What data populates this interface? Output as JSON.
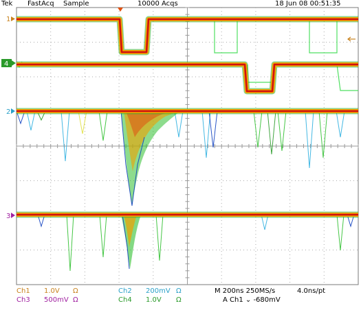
{
  "header": {
    "brand": "Tek",
    "mode": "FastAcq",
    "acq_mode": "Sample",
    "acquisitions": "10000 Acqs",
    "date_time": "18 Jun 08 00:51:35"
  },
  "channel_markers": {
    "ch1": "1",
    "ch4": "4",
    "ch2": "2",
    "ch3": "3"
  },
  "readout": {
    "ch1_label": "Ch1",
    "ch1_scale": "1.0V",
    "ch1_coupling": "Ω",
    "ch3_label": "Ch3",
    "ch3_scale": "500mV",
    "ch3_coupling": "Ω",
    "ch2_label": "Ch2",
    "ch2_scale": "200mV",
    "ch2_coupling": "Ω",
    "ch4_label": "Ch4",
    "ch4_scale": "1.0V",
    "ch4_coupling": "Ω",
    "timebase": "M 200ns 250MS/s",
    "resolution": "4.0ns/pt",
    "trigger": "A  Ch1  ⌄  -680mV"
  },
  "colors": {
    "ch1": "#c8821e",
    "ch2": "#2aa0c8",
    "ch3": "#a020a0",
    "ch4": "#2a9a2a",
    "grid": "#9a9a9a",
    "persistence_hot": "#d01010",
    "persistence_warm": "#f0a000",
    "persistence_cool": "#30c030"
  }
}
